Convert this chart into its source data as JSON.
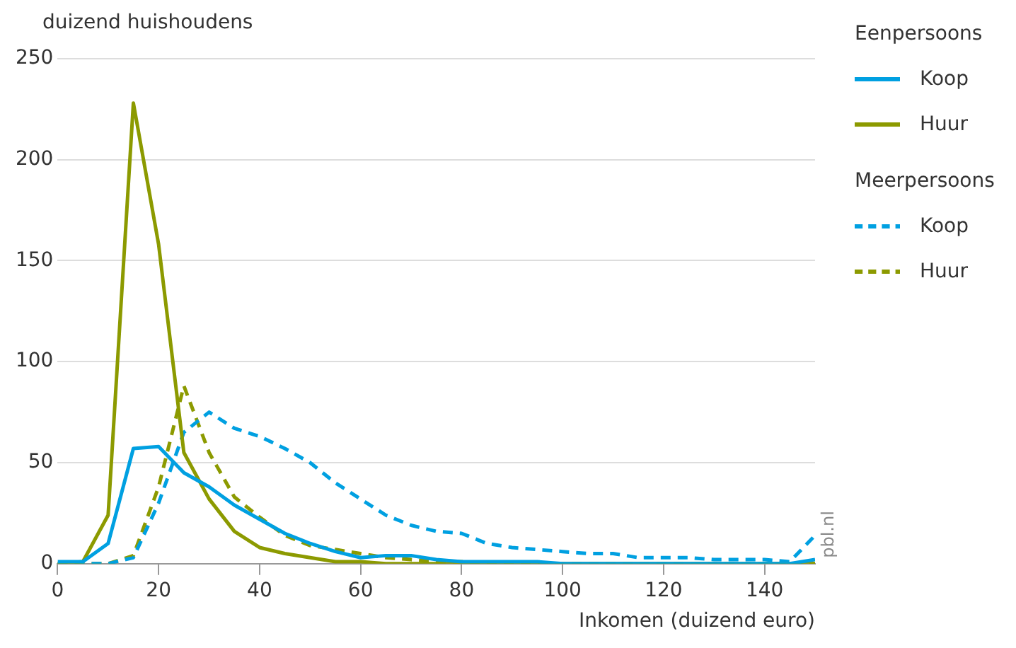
{
  "chart_data": {
    "type": "line",
    "xlabel": "Inkomen (duizend euro)",
    "ylabel": "duizend huishoudens",
    "x": [
      0,
      5,
      10,
      15,
      20,
      25,
      30,
      35,
      40,
      45,
      50,
      55,
      60,
      65,
      70,
      75,
      80,
      85,
      90,
      95,
      100,
      105,
      110,
      115,
      120,
      125,
      130,
      135,
      140,
      145,
      150
    ],
    "series": [
      {
        "name": "Koop",
        "color": "#00a0e1",
        "line_style": "solid",
        "values": [
          1,
          1,
          10,
          57,
          58,
          45,
          38,
          29,
          22,
          15,
          10,
          6,
          3,
          4,
          4,
          2,
          1,
          1,
          1,
          1,
          0,
          0,
          0,
          0,
          0,
          0,
          0,
          0,
          0,
          0,
          2
        ]
      },
      {
        "name": "Huur",
        "color": "#8c9a00",
        "line_style": "solid",
        "values": [
          0,
          1,
          24,
          228,
          158,
          55,
          32,
          16,
          8,
          5,
          3,
          1,
          1,
          0,
          0,
          0,
          0,
          0,
          0,
          0,
          0,
          0,
          0,
          0,
          0,
          0,
          0,
          0,
          0,
          0,
          0
        ]
      },
      {
        "name": "Koop",
        "color": "#00a0e1",
        "line_style": "dashed",
        "values": [
          0,
          0,
          0,
          3,
          30,
          65,
          75,
          67,
          63,
          57,
          50,
          40,
          32,
          24,
          19,
          16,
          15,
          10,
          8,
          7,
          6,
          5,
          5,
          3,
          3,
          3,
          2,
          2,
          2,
          1,
          14
        ]
      },
      {
        "name": "Huur",
        "color": "#8c9a00",
        "line_style": "dashed",
        "values": [
          0,
          0,
          0,
          4,
          38,
          88,
          55,
          33,
          23,
          14,
          9,
          7,
          5,
          3,
          2,
          1,
          1,
          0,
          0,
          0,
          0,
          0,
          0,
          0,
          0,
          0,
          0,
          0,
          0,
          0,
          0
        ]
      }
    ],
    "xlim": [
      0,
      150
    ],
    "xticks": [
      0,
      20,
      40,
      60,
      80,
      100,
      120,
      140
    ],
    "ylim": [
      0,
      250
    ],
    "yticks": [
      0,
      50,
      100,
      150,
      200,
      250
    ],
    "grid": "y",
    "legend": "top right",
    "marker": "none",
    "annotations": [
      "Eenpersoons",
      "Meerpersoons",
      "pbl.nl"
    ]
  }
}
